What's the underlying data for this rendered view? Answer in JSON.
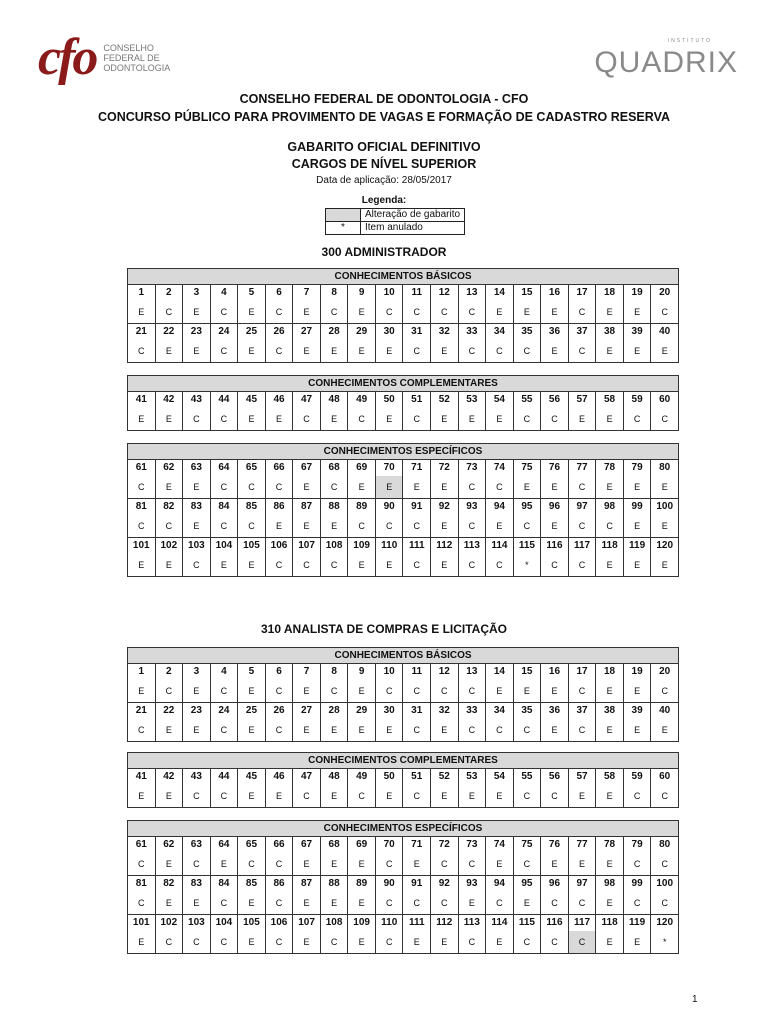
{
  "logos": {
    "cfo_mark": "cfo",
    "cfo_text": [
      "CONSELHO",
      "FEDERAL DE",
      "ODONTOLOGIA"
    ],
    "quadrix_small": "INSTITUTO",
    "quadrix_word": "QUADRIX"
  },
  "header": {
    "line1": "CONSELHO FEDERAL DE ODONTOLOGIA - CFO",
    "line2": "CONCURSO PÚBLICO PARA PROVIMENTO DE VAGAS E FORMAÇÃO DE CADASTRO RESERVA",
    "line3": "GABARITO OFICIAL DEFINITIVO",
    "line4": "CARGOS DE NÍVEL SUPERIOR",
    "date": "Data de aplicação: 28/05/2017"
  },
  "legend": {
    "title": "Legenda:",
    "changed_label": "Alteração de gabarito",
    "annulled_symbol": "*",
    "annulled_label": "Item anulado",
    "changed_color": "#d9d9d9"
  },
  "sections": [
    {
      "title": "300 ADMINISTRADOR",
      "blocks": [
        {
          "header": "CONHECIMENTOS BÁSICOS",
          "changed": [],
          "rows": [
            {
              "numbers": [
                "1",
                "2",
                "3",
                "4",
                "5",
                "6",
                "7",
                "8",
                "9",
                "10",
                "11",
                "12",
                "13",
                "14",
                "15",
                "16",
                "17",
                "18",
                "19",
                "20"
              ],
              "answers": [
                "E",
                "C",
                "E",
                "C",
                "E",
                "C",
                "E",
                "C",
                "E",
                "C",
                "C",
                "C",
                "C",
                "E",
                "E",
                "E",
                "C",
                "E",
                "E",
                "C"
              ]
            },
            {
              "numbers": [
                "21",
                "22",
                "23",
                "24",
                "25",
                "26",
                "27",
                "28",
                "29",
                "30",
                "31",
                "32",
                "33",
                "34",
                "35",
                "36",
                "37",
                "38",
                "39",
                "40"
              ],
              "answers": [
                "C",
                "E",
                "E",
                "C",
                "E",
                "C",
                "E",
                "E",
                "E",
                "E",
                "C",
                "E",
                "C",
                "C",
                "C",
                "E",
                "C",
                "E",
                "E",
                "E"
              ]
            }
          ]
        },
        {
          "header": "CONHECIMENTOS COMPLEMENTARES",
          "changed": [],
          "rows": [
            {
              "numbers": [
                "41",
                "42",
                "43",
                "44",
                "45",
                "46",
                "47",
                "48",
                "49",
                "50",
                "51",
                "52",
                "53",
                "54",
                "55",
                "56",
                "57",
                "58",
                "59",
                "60"
              ],
              "answers": [
                "E",
                "E",
                "C",
                "C",
                "E",
                "E",
                "C",
                "E",
                "C",
                "E",
                "C",
                "E",
                "E",
                "E",
                "C",
                "C",
                "E",
                "E",
                "C",
                "C"
              ]
            }
          ]
        },
        {
          "header": "CONHECIMENTOS ESPECÍFICOS",
          "changed": [
            "70"
          ],
          "rows": [
            {
              "numbers": [
                "61",
                "62",
                "63",
                "64",
                "65",
                "66",
                "67",
                "68",
                "69",
                "70",
                "71",
                "72",
                "73",
                "74",
                "75",
                "76",
                "77",
                "78",
                "79",
                "80"
              ],
              "answers": [
                "C",
                "E",
                "E",
                "C",
                "C",
                "C",
                "E",
                "C",
                "E",
                "E",
                "E",
                "E",
                "C",
                "C",
                "E",
                "E",
                "C",
                "E",
                "E",
                "E"
              ]
            },
            {
              "numbers": [
                "81",
                "82",
                "83",
                "84",
                "85",
                "86",
                "87",
                "88",
                "89",
                "90",
                "91",
                "92",
                "93",
                "94",
                "95",
                "96",
                "97",
                "98",
                "99",
                "100"
              ],
              "answers": [
                "C",
                "C",
                "E",
                "C",
                "C",
                "E",
                "E",
                "E",
                "C",
                "C",
                "C",
                "E",
                "C",
                "E",
                "C",
                "E",
                "C",
                "C",
                "E",
                "E"
              ]
            },
            {
              "numbers": [
                "101",
                "102",
                "103",
                "104",
                "105",
                "106",
                "107",
                "108",
                "109",
                "110",
                "111",
                "112",
                "113",
                "114",
                "115",
                "116",
                "117",
                "118",
                "119",
                "120"
              ],
              "answers": [
                "E",
                "E",
                "C",
                "E",
                "E",
                "C",
                "C",
                "C",
                "E",
                "E",
                "C",
                "E",
                "C",
                "C",
                "*",
                "C",
                "C",
                "E",
                "E",
                "E"
              ]
            }
          ]
        }
      ]
    },
    {
      "title": "310 ANALISTA DE COMPRAS E LICITAÇÃO",
      "blocks": [
        {
          "header": "CONHECIMENTOS BÁSICOS",
          "changed": [],
          "rows": [
            {
              "numbers": [
                "1",
                "2",
                "3",
                "4",
                "5",
                "6",
                "7",
                "8",
                "9",
                "10",
                "11",
                "12",
                "13",
                "14",
                "15",
                "16",
                "17",
                "18",
                "19",
                "20"
              ],
              "answers": [
                "E",
                "C",
                "E",
                "C",
                "E",
                "C",
                "E",
                "C",
                "E",
                "C",
                "C",
                "C",
                "C",
                "E",
                "E",
                "E",
                "C",
                "E",
                "E",
                "C"
              ]
            },
            {
              "numbers": [
                "21",
                "22",
                "23",
                "24",
                "25",
                "26",
                "27",
                "28",
                "29",
                "30",
                "31",
                "32",
                "33",
                "34",
                "35",
                "36",
                "37",
                "38",
                "39",
                "40"
              ],
              "answers": [
                "C",
                "E",
                "E",
                "C",
                "E",
                "C",
                "E",
                "E",
                "E",
                "E",
                "C",
                "E",
                "C",
                "C",
                "C",
                "E",
                "C",
                "E",
                "E",
                "E"
              ]
            }
          ]
        },
        {
          "header": "CONHECIMENTOS COMPLEMENTARES",
          "changed": [],
          "rows": [
            {
              "numbers": [
                "41",
                "42",
                "43",
                "44",
                "45",
                "46",
                "47",
                "48",
                "49",
                "50",
                "51",
                "52",
                "53",
                "54",
                "55",
                "56",
                "57",
                "58",
                "59",
                "60"
              ],
              "answers": [
                "E",
                "E",
                "C",
                "C",
                "E",
                "E",
                "C",
                "E",
                "C",
                "E",
                "C",
                "E",
                "E",
                "E",
                "C",
                "C",
                "E",
                "E",
                "C",
                "C"
              ]
            }
          ]
        },
        {
          "header": "CONHECIMENTOS ESPECÍFICOS",
          "changed": [
            "117"
          ],
          "rows": [
            {
              "numbers": [
                "61",
                "62",
                "63",
                "64",
                "65",
                "66",
                "67",
                "68",
                "69",
                "70",
                "71",
                "72",
                "73",
                "74",
                "75",
                "76",
                "77",
                "78",
                "79",
                "80"
              ],
              "answers": [
                "C",
                "E",
                "C",
                "E",
                "C",
                "C",
                "E",
                "E",
                "E",
                "C",
                "E",
                "C",
                "C",
                "E",
                "C",
                "E",
                "E",
                "E",
                "C",
                "C"
              ]
            },
            {
              "numbers": [
                "81",
                "82",
                "83",
                "84",
                "85",
                "86",
                "87",
                "88",
                "89",
                "90",
                "91",
                "92",
                "93",
                "94",
                "95",
                "96",
                "97",
                "98",
                "99",
                "100"
              ],
              "answers": [
                "C",
                "E",
                "E",
                "C",
                "E",
                "C",
                "E",
                "E",
                "E",
                "C",
                "C",
                "C",
                "E",
                "C",
                "E",
                "C",
                "C",
                "E",
                "C",
                "C"
              ]
            },
            {
              "numbers": [
                "101",
                "102",
                "103",
                "104",
                "105",
                "106",
                "107",
                "108",
                "109",
                "110",
                "111",
                "112",
                "113",
                "114",
                "115",
                "116",
                "117",
                "118",
                "119",
                "120"
              ],
              "answers": [
                "E",
                "C",
                "C",
                "C",
                "E",
                "C",
                "E",
                "C",
                "E",
                "C",
                "E",
                "E",
                "C",
                "E",
                "C",
                "C",
                "C",
                "E",
                "E",
                "*"
              ]
            }
          ]
        }
      ]
    }
  ],
  "page_number": "1"
}
